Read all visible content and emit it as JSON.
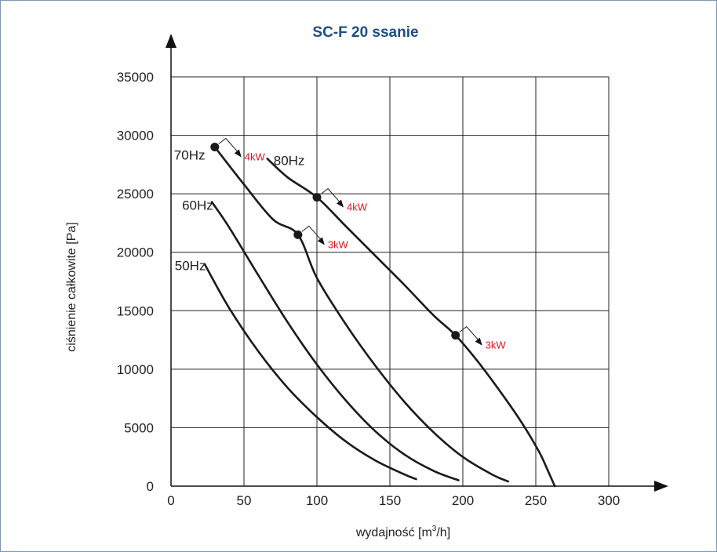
{
  "chart_data": {
    "type": "line",
    "title": "SC-F 20 ssanie",
    "xlabel": "wydajność [m³/h]",
    "xlabel_main": "wydajność [m",
    "xlabel_sup": "3",
    "xlabel_tail": "/h]",
    "ylabel": "ciśnienie całkowite [Pa]",
    "xlim": [
      0,
      300
    ],
    "ylim": [
      0,
      35000
    ],
    "xticks": [
      "0",
      "50",
      "100",
      "150",
      "200",
      "250",
      "300"
    ],
    "yticks": [
      "0",
      "5000",
      "10000",
      "15000",
      "20000",
      "25000",
      "30000",
      "35000"
    ],
    "grid": true,
    "series": [
      {
        "name": "50Hz",
        "points": [
          [
            23,
            19000
          ],
          [
            40,
            15200
          ],
          [
            60,
            11500
          ],
          [
            80,
            8400
          ],
          [
            100,
            5900
          ],
          [
            120,
            3800
          ],
          [
            140,
            2200
          ],
          [
            160,
            1000
          ],
          [
            168,
            600
          ]
        ]
      },
      {
        "name": "60Hz",
        "points": [
          [
            28,
            24300
          ],
          [
            40,
            22100
          ],
          [
            60,
            18000
          ],
          [
            80,
            14000
          ],
          [
            100,
            10400
          ],
          [
            120,
            7300
          ],
          [
            140,
            4700
          ],
          [
            160,
            2700
          ],
          [
            180,
            1300
          ],
          [
            197,
            500
          ]
        ]
      },
      {
        "name": "70Hz",
        "points": [
          [
            30,
            29000
          ],
          [
            50,
            25800
          ],
          [
            70,
            22800
          ],
          [
            87,
            21500
          ],
          [
            100,
            17800
          ],
          [
            120,
            13800
          ],
          [
            140,
            10300
          ],
          [
            160,
            7200
          ],
          [
            180,
            4600
          ],
          [
            200,
            2500
          ],
          [
            220,
            1000
          ],
          [
            231,
            400
          ]
        ]
      },
      {
        "name": "80Hz",
        "points": [
          [
            66,
            28000
          ],
          [
            80,
            26400
          ],
          [
            100,
            24700
          ],
          [
            120,
            22200
          ],
          [
            140,
            19700
          ],
          [
            160,
            17200
          ],
          [
            180,
            14600
          ],
          [
            195,
            12900
          ],
          [
            210,
            10700
          ],
          [
            225,
            8200
          ],
          [
            240,
            5500
          ],
          [
            252,
            3000
          ],
          [
            258,
            1400
          ],
          [
            263,
            0
          ]
        ]
      }
    ],
    "markers": [
      {
        "x": 30,
        "y": 29000,
        "label": "4kW",
        "series": "70Hz"
      },
      {
        "x": 87,
        "y": 21500,
        "label": "3kW",
        "series": "70Hz"
      },
      {
        "x": 100,
        "y": 24700,
        "label": "4kW",
        "series": "80Hz"
      },
      {
        "x": 195,
        "y": 12900,
        "label": "3kW",
        "series": "80Hz"
      }
    ]
  },
  "colors": {
    "title": "#1b4e86",
    "frame": "#7d97b3",
    "curve": "#1a1a1a",
    "grid": "#222222",
    "power_label": "#e0161f"
  }
}
